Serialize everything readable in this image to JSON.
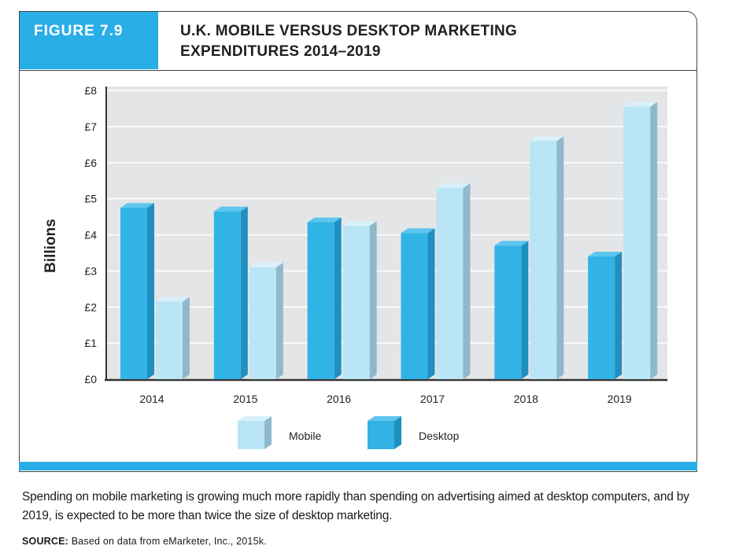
{
  "figure": {
    "label": "FIGURE 7.9",
    "title_line1": "U.K. MOBILE VERSUS DESKTOP MARKETING",
    "title_line2": "EXPENDITURES 2014–2019"
  },
  "chart_data": {
    "type": "bar",
    "ylabel": "Billions",
    "ylim": [
      0,
      8
    ],
    "yticks": [
      "£0",
      "£1",
      "£2",
      "£3",
      "£4",
      "£5",
      "£6",
      "£7",
      "£8"
    ],
    "categories": [
      "2014",
      "2015",
      "2016",
      "2017",
      "2018",
      "2019"
    ],
    "series": [
      {
        "name": "Desktop",
        "values": [
          4.75,
          4.65,
          4.35,
          4.05,
          3.7,
          3.4
        ]
      },
      {
        "name": "Mobile",
        "values": [
          2.15,
          3.1,
          4.25,
          5.3,
          6.6,
          7.55
        ]
      }
    ],
    "legend": [
      "Mobile",
      "Desktop"
    ],
    "legend_position": "bottom",
    "grid": true,
    "colors": {
      "desktop_front": "#32b3e6",
      "desktop_side": "#1f8fc0",
      "desktop_top": "#5cc6ee",
      "mobile_front": "#b9e5f6",
      "mobile_side": "#8fb8cc",
      "mobile_top": "#d8f1fb"
    }
  },
  "caption": "Spending on mobile marketing is growing much more rapidly than spending on advertising aimed at desktop computers, and by 2019, is expected to be more than twice the size of desktop marketing.",
  "source": {
    "label": "SOURCE:",
    "text": "Based on data from eMarketer, Inc., 2015k."
  }
}
